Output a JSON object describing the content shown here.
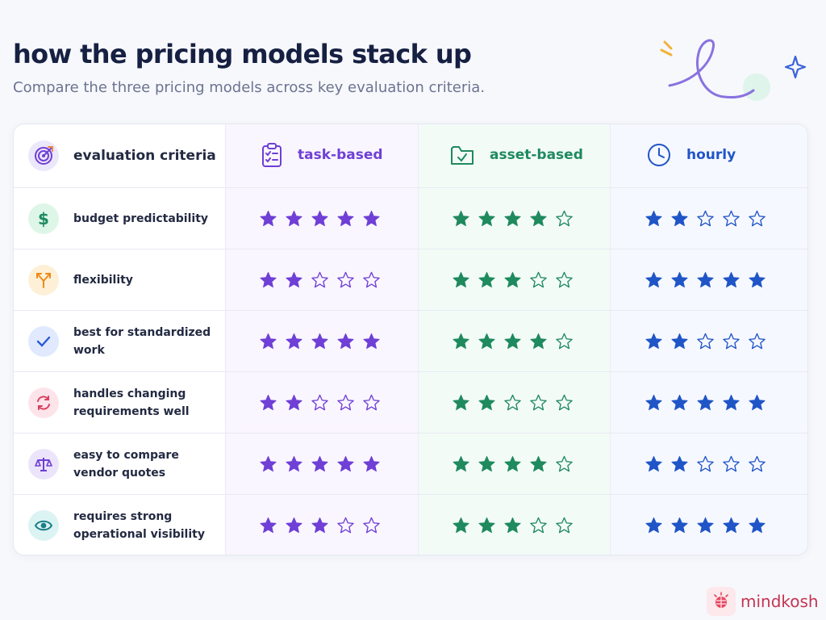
{
  "page": {
    "title": "how the pricing models stack up",
    "subtitle": "Compare the three pricing models across key evaluation criteria."
  },
  "table": {
    "header": {
      "criteria_label": "evaluation criteria",
      "criteria_icon": "target-icon",
      "columns": [
        {
          "key": "task",
          "label": "task-based",
          "icon": "clipboard-checklist-icon",
          "color": "#6f3fd6"
        },
        {
          "key": "asset",
          "label": "asset-based",
          "icon": "folder-check-icon",
          "color": "#1e8a5e"
        },
        {
          "key": "hourly",
          "label": "hourly",
          "icon": "clock-icon",
          "color": "#1f55c7"
        }
      ]
    },
    "rows": [
      {
        "label": "budget predictability",
        "icon": "dollar-icon",
        "ratings": [
          5,
          4,
          2
        ]
      },
      {
        "label": "flexibility",
        "icon": "branch-arrows-icon",
        "ratings": [
          2,
          3,
          5
        ]
      },
      {
        "label": "best for standardized work",
        "icon": "checkmark-icon",
        "ratings": [
          5,
          4,
          2
        ]
      },
      {
        "label": "handles changing requirements well",
        "icon": "refresh-icon",
        "ratings": [
          2,
          2,
          5
        ]
      },
      {
        "label": "easy to compare vendor quotes",
        "icon": "scale-icon",
        "ratings": [
          5,
          4,
          2
        ]
      },
      {
        "label": "requires strong operational visibility",
        "icon": "eye-icon",
        "ratings": [
          3,
          3,
          5
        ]
      }
    ],
    "max_rating": 5
  },
  "brand": {
    "name": "mindkosh",
    "icon": "brain-logo-icon"
  }
}
